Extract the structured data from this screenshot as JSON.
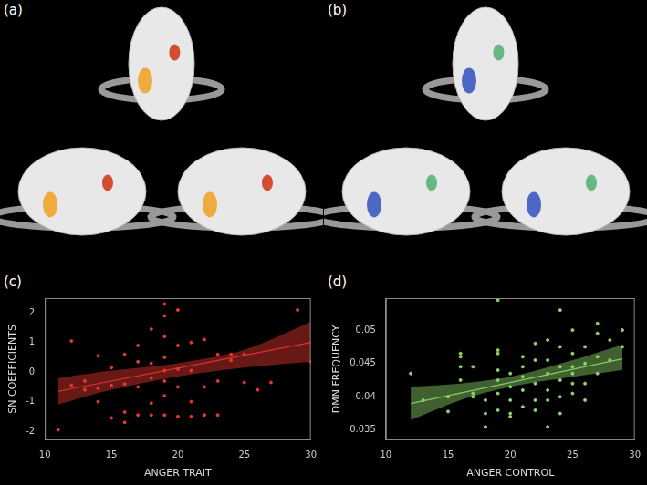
{
  "figures": [
    {
      "label": "(a)"
    },
    {
      "label": "(b)"
    }
  ],
  "chart_data": [
    {
      "type": "scatter",
      "label": "(c)",
      "color": "#e8382e",
      "x_label": "ANGER TRAIT",
      "y_label": "SN COEFFICIENTS",
      "xlim": [
        10,
        30
      ],
      "xticks": [
        10,
        15,
        20,
        25,
        30
      ],
      "ylim": [
        -2.3,
        2.5
      ],
      "yticks": [
        -2,
        -1,
        0,
        1,
        2
      ],
      "grid": false,
      "x": [
        11,
        12,
        12,
        13,
        13,
        14,
        14,
        14,
        15,
        15,
        15,
        16,
        16,
        16,
        16,
        17,
        17,
        17,
        17,
        18,
        18,
        18,
        18,
        18,
        19,
        19,
        19,
        19,
        19,
        19,
        19,
        19,
        20,
        20,
        20,
        20,
        20,
        21,
        21,
        21,
        21,
        22,
        22,
        22,
        23,
        23,
        23,
        24,
        24,
        25,
        25,
        26,
        27,
        29,
        30
      ],
      "values": [
        -1.95,
        1.05,
        -0.45,
        -0.3,
        -0.6,
        0.55,
        -0.55,
        -1.0,
        -0.45,
        -1.55,
        0.15,
        0.6,
        -0.4,
        -1.35,
        -1.7,
        0.9,
        0.35,
        -0.5,
        -1.45,
        1.45,
        0.3,
        -0.2,
        -1.05,
        -1.45,
        2.3,
        1.9,
        1.2,
        0.5,
        0.05,
        -0.3,
        -0.8,
        -1.45,
        2.1,
        0.9,
        0.1,
        -0.5,
        -1.5,
        1.0,
        0.05,
        -1.0,
        -1.5,
        1.1,
        -0.5,
        -1.45,
        0.6,
        -0.3,
        -1.45,
        0.6,
        0.4,
        0.6,
        -0.35,
        -0.6,
        -0.35,
        2.1,
        0.35
      ],
      "fit": {
        "x": [
          11,
          30
        ],
        "values": [
          -0.65,
          1.0
        ]
      },
      "band": {
        "x": [
          11,
          15,
          20,
          25,
          30
        ],
        "lower": [
          -1.1,
          -0.6,
          -0.15,
          0.15,
          0.35
        ],
        "upper": [
          -0.2,
          0.05,
          0.3,
          0.75,
          1.7
        ]
      }
    },
    {
      "type": "scatter",
      "label": "(d)",
      "color": "#8fd46a",
      "x_label": "ANGER CONTROL",
      "y_label": "DMN FREQUENCY",
      "xlim": [
        10,
        30
      ],
      "xticks": [
        10,
        15,
        20,
        25,
        30
      ],
      "ylim": [
        0.0335,
        0.0548
      ],
      "yticks": [
        0.035,
        0.04,
        0.045,
        0.05
      ],
      "grid": false,
      "x": [
        12,
        13,
        15,
        15,
        16,
        16,
        16,
        16,
        17,
        17,
        17,
        18,
        18,
        18,
        19,
        19,
        19,
        19,
        19,
        19,
        19,
        20,
        20,
        20,
        20,
        20,
        21,
        21,
        21,
        21,
        21,
        22,
        22,
        22,
        22,
        22,
        23,
        23,
        23,
        23,
        23,
        23,
        24,
        24,
        24,
        24,
        24,
        24,
        25,
        25,
        25,
        25,
        25,
        25,
        26,
        26,
        26,
        26,
        27,
        27,
        27,
        27,
        28,
        28,
        29,
        29
      ],
      "values": [
        0.0435,
        0.0395,
        0.04,
        0.0378,
        0.0465,
        0.046,
        0.0445,
        0.0425,
        0.0445,
        0.0405,
        0.04,
        0.0395,
        0.0375,
        0.0355,
        0.0545,
        0.047,
        0.0465,
        0.044,
        0.0425,
        0.0405,
        0.038,
        0.0435,
        0.0415,
        0.0395,
        0.0375,
        0.037,
        0.046,
        0.043,
        0.0445,
        0.041,
        0.0385,
        0.048,
        0.0455,
        0.042,
        0.0395,
        0.038,
        0.0485,
        0.0455,
        0.0435,
        0.041,
        0.0395,
        0.0355,
        0.053,
        0.0475,
        0.0445,
        0.0425,
        0.04,
        0.0375,
        0.05,
        0.0465,
        0.0445,
        0.0435,
        0.042,
        0.0405,
        0.0475,
        0.045,
        0.042,
        0.0395,
        0.051,
        0.0495,
        0.046,
        0.0435,
        0.0485,
        0.0455,
        0.05,
        0.0475
      ],
      "fit": {
        "x": [
          12,
          29
        ],
        "values": [
          0.039,
          0.0457
        ]
      },
      "band": {
        "x": [
          12,
          16,
          20,
          25,
          29
        ],
        "lower": [
          0.0365,
          0.0395,
          0.0415,
          0.043,
          0.044
        ],
        "upper": [
          0.0415,
          0.042,
          0.043,
          0.0455,
          0.0478
        ]
      }
    }
  ]
}
